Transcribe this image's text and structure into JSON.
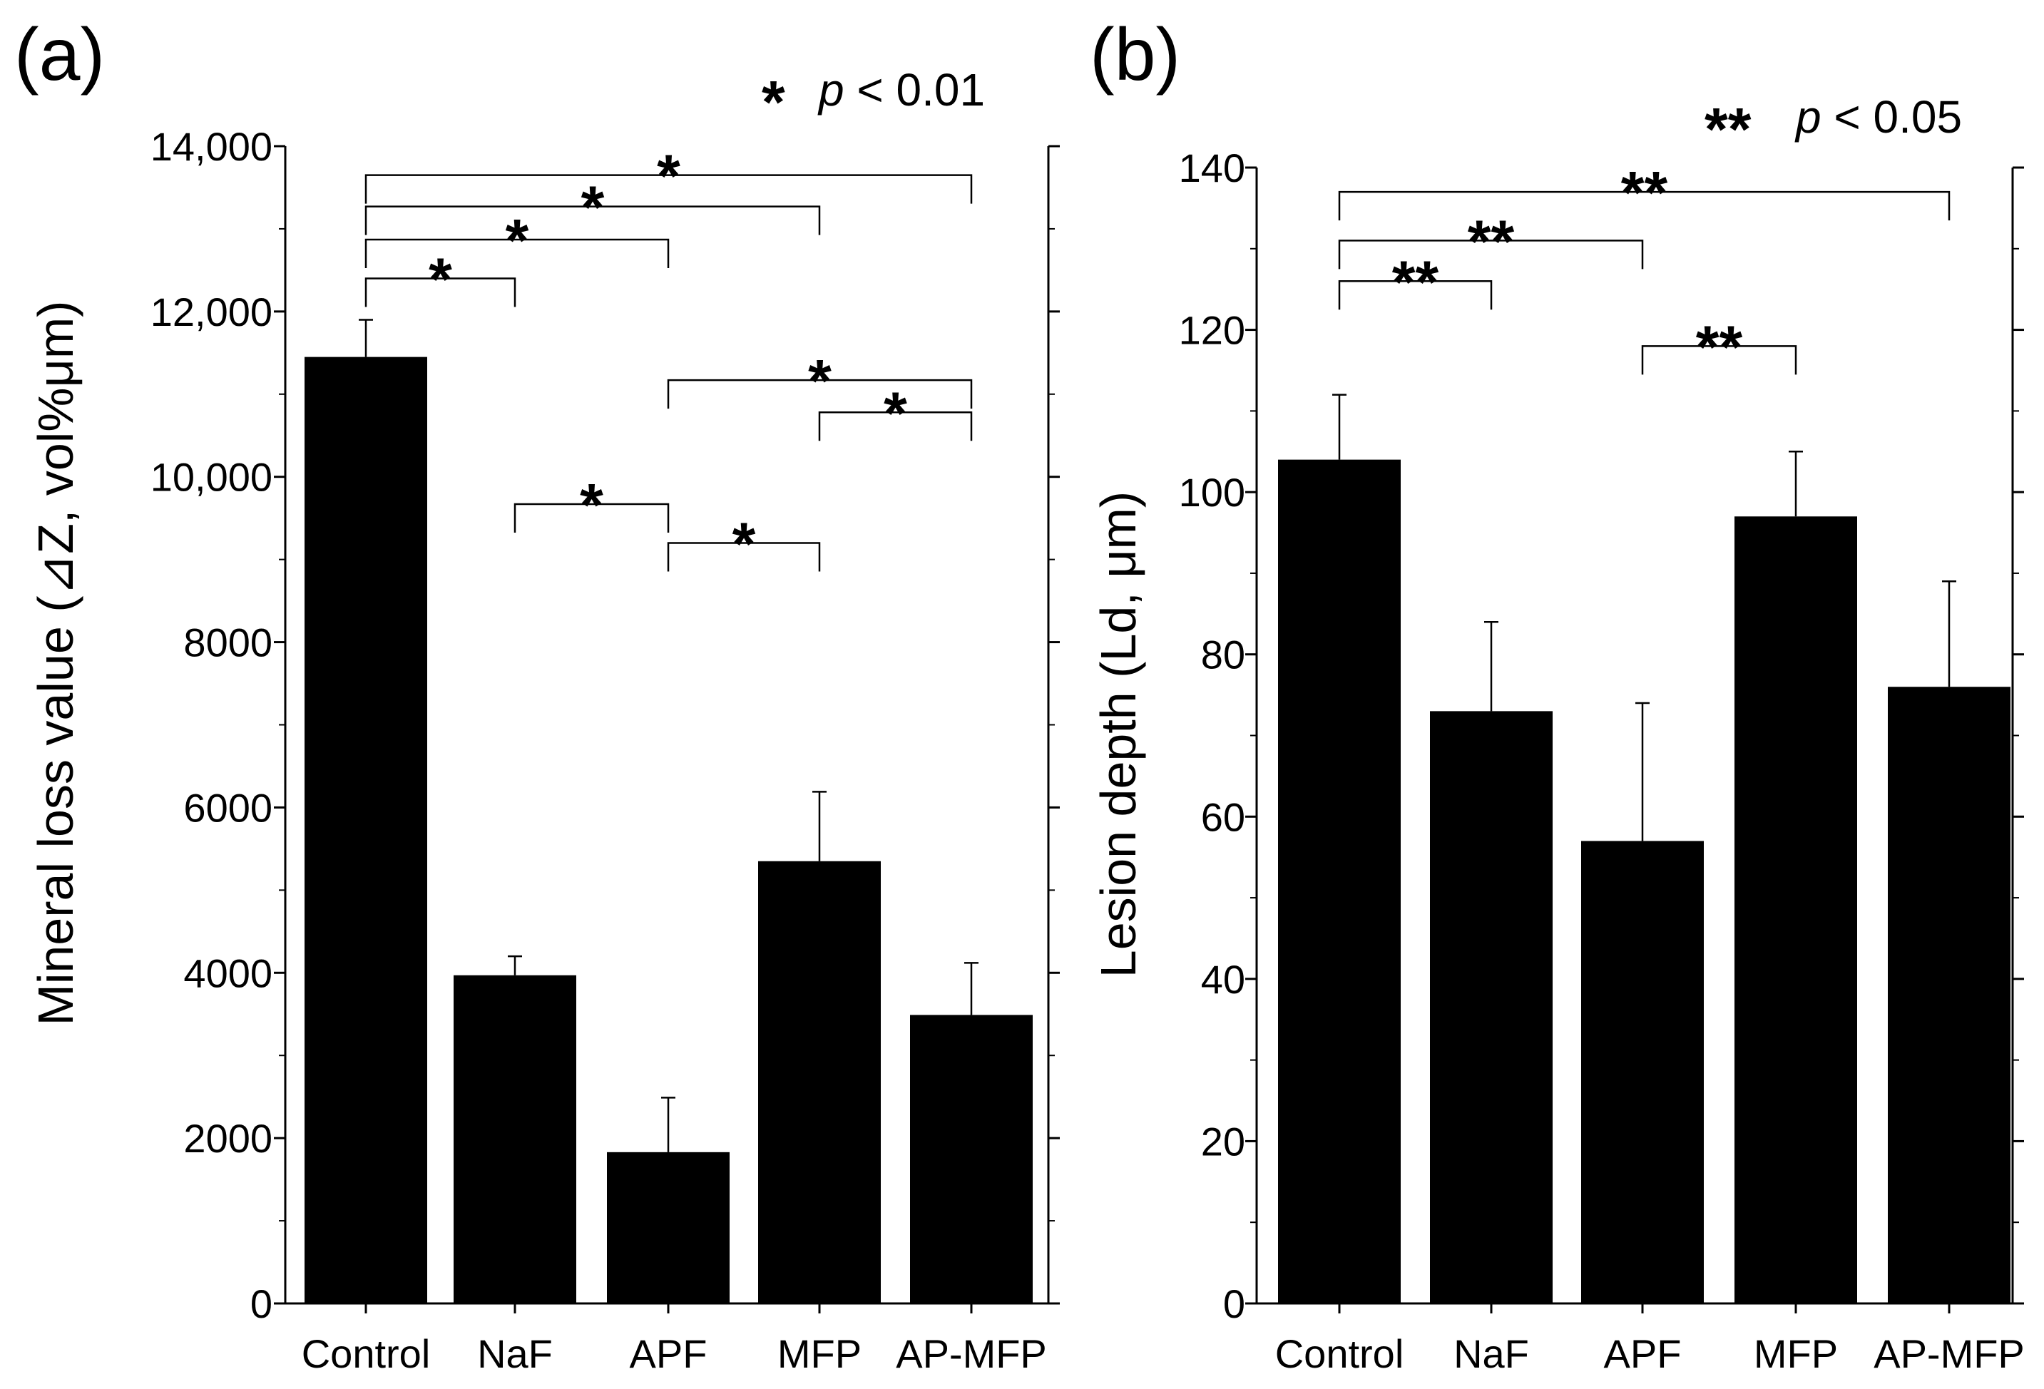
{
  "chart_data": [
    {
      "type": "bar",
      "panel_label": "(a)",
      "ylabel": "Mineral loss value (⊿Z, vol%μm)",
      "xlabel": "",
      "categories": [
        "Control",
        "NaF",
        "APF",
        "MFP",
        "AP-MFP"
      ],
      "values": [
        11450,
        3970,
        1830,
        5350,
        3490
      ],
      "errors": [
        450,
        230,
        660,
        840,
        630
      ],
      "ylim": [
        0,
        14000
      ],
      "yticks": [
        0,
        2000,
        4000,
        6000,
        8000,
        10000,
        12000,
        14000
      ],
      "ytick_labels": [
        "0",
        "2000",
        "4000",
        "6000",
        "8000",
        "10,000",
        "12,000",
        "14,000"
      ],
      "significance_note": {
        "stars": "*",
        "p": "p",
        "text": "< 0.01"
      },
      "comparisons": [
        {
          "from": 0,
          "to": 4,
          "y": 13650,
          "label": "*"
        },
        {
          "from": 0,
          "to": 3,
          "y": 13270,
          "label": "*"
        },
        {
          "from": 0,
          "to": 2,
          "y": 12870,
          "label": "*"
        },
        {
          "from": 0,
          "to": 1,
          "y": 12400,
          "label": "*"
        },
        {
          "from": 2,
          "to": 4,
          "y": 11170,
          "label": "*"
        },
        {
          "from": 3,
          "to": 4,
          "y": 10780,
          "label": "*"
        },
        {
          "from": 1,
          "to": 2,
          "y": 9670,
          "label": "*"
        },
        {
          "from": 2,
          "to": 3,
          "y": 9200,
          "label": "*"
        }
      ]
    },
    {
      "type": "bar",
      "panel_label": "(b)",
      "ylabel": "Lesion depth (Ld, μm)",
      "xlabel": "",
      "categories": [
        "Control",
        "NaF",
        "APF",
        "MFP",
        "AP-MFP"
      ],
      "values": [
        104,
        73,
        57,
        97,
        76
      ],
      "errors": [
        8,
        11,
        17,
        8,
        13
      ],
      "ylim": [
        0,
        140
      ],
      "yticks": [
        0,
        20,
        40,
        60,
        80,
        100,
        120,
        140
      ],
      "ytick_labels": [
        "0",
        "20",
        "40",
        "60",
        "80",
        "100",
        "120",
        "140"
      ],
      "significance_note": {
        "stars": "**",
        "p": "p",
        "text": "< 0.05"
      },
      "comparisons": [
        {
          "from": 0,
          "to": 4,
          "y": 137,
          "label": "**"
        },
        {
          "from": 0,
          "to": 2,
          "y": 131,
          "label": "**"
        },
        {
          "from": 0,
          "to": 1,
          "y": 126,
          "label": "**"
        },
        {
          "from": 2,
          "to": 3,
          "y": 118,
          "label": "**"
        }
      ]
    }
  ]
}
